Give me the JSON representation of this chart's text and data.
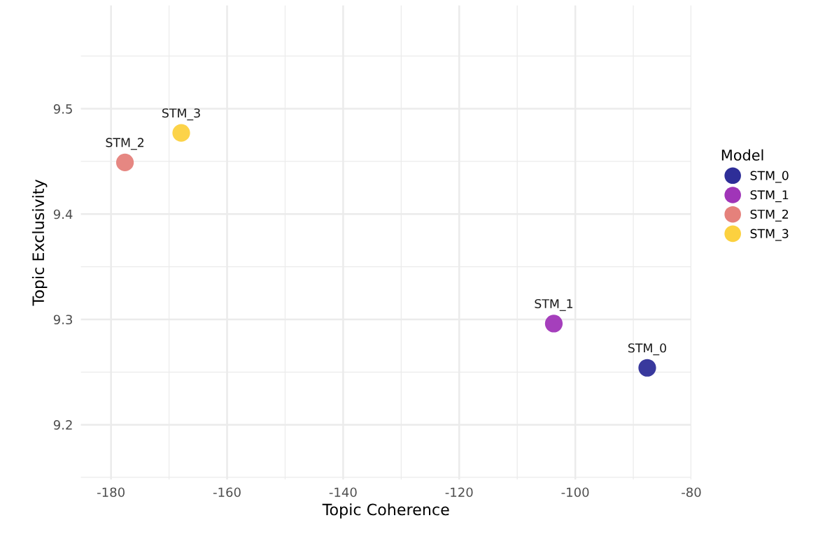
{
  "chart_data": {
    "type": "scatter",
    "xlabel": "Topic Coherence",
    "ylabel": "Topic Exclusivity",
    "legend_title": "Model",
    "legend": "right",
    "grid": true,
    "marker": "circle",
    "xlim": [
      -185.2,
      -80
    ],
    "ylim": [
      9.148,
      9.598
    ],
    "xticks": [
      -180,
      -160,
      -140,
      -120,
      -100,
      -80
    ],
    "yticks": [
      9.2,
      9.3,
      9.4,
      9.5
    ],
    "series": [
      {
        "name": "STM_0",
        "color": "#2e2e98",
        "x": [
          -87.6
        ],
        "values": [
          9.254
        ]
      },
      {
        "name": "STM_1",
        "color": "#a035b8",
        "x": [
          -103.7
        ],
        "values": [
          9.296
        ]
      },
      {
        "name": "STM_2",
        "color": "#e5817b",
        "x": [
          -177.6
        ],
        "values": [
          9.449
        ]
      },
      {
        "name": "STM_3",
        "color": "#fcd13f",
        "x": [
          -167.9
        ],
        "values": [
          9.477
        ]
      }
    ]
  }
}
